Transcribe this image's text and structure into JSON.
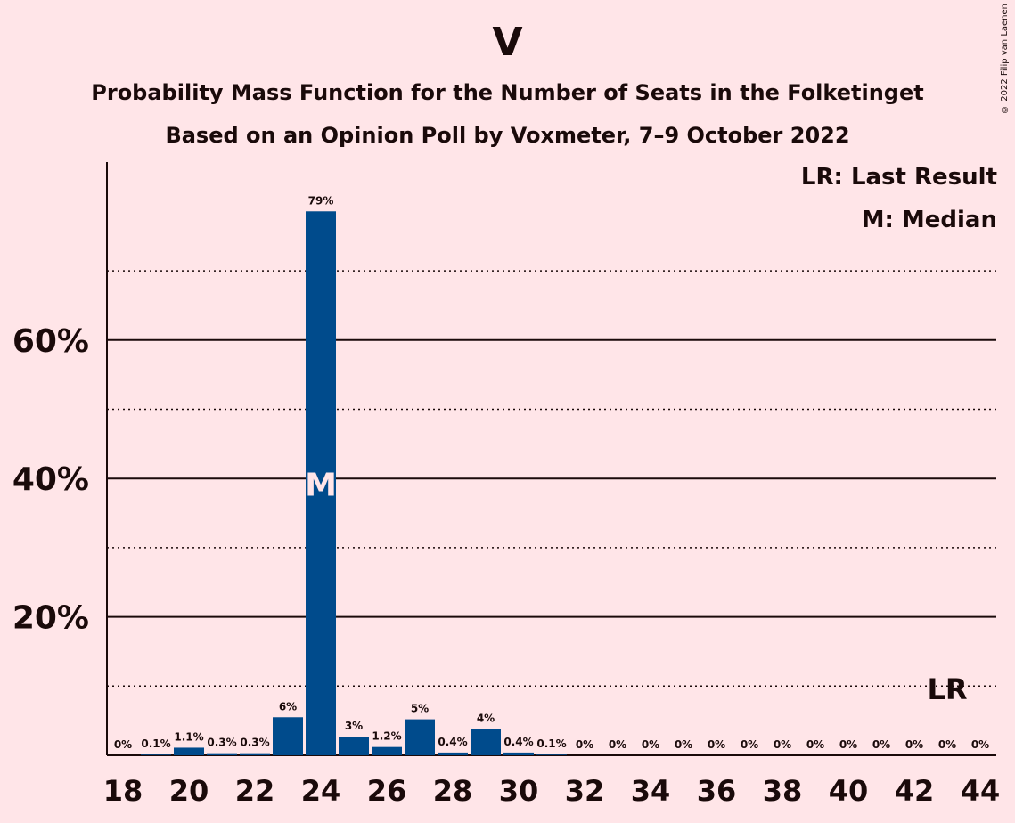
{
  "chart_data": {
    "type": "bar",
    "title": "V",
    "subtitle_lines": [
      "Probability Mass Function for the Number of Seats in the Folketinget",
      "Based on an Opinion Poll by Voxmeter, 7–9 October 2022"
    ],
    "copyright": "© 2022 Filip van Laenen",
    "legend": [
      "LR: Last Result",
      "M: Median"
    ],
    "legend_position": "top-right",
    "categories": [
      18,
      19,
      20,
      21,
      22,
      23,
      24,
      25,
      26,
      27,
      28,
      29,
      30,
      31,
      32,
      33,
      34,
      35,
      36,
      37,
      38,
      39,
      40,
      41,
      42,
      43,
      44
    ],
    "values": [
      0,
      0.1,
      1.1,
      0.3,
      0.3,
      5.5,
      78.6,
      2.7,
      1.2,
      5.2,
      0.4,
      3.8,
      0.4,
      0.1,
      0,
      0,
      0,
      0,
      0,
      0,
      0,
      0,
      0,
      0,
      0,
      0,
      0
    ],
    "data_labels": [
      "0%",
      "0.1%",
      "1.1%",
      "0.3%",
      "0.3%",
      "6%",
      "79%",
      "3%",
      "1.2%",
      "5%",
      "0.4%",
      "4%",
      "0.4%",
      "0.1%",
      "0%",
      "0%",
      "0%",
      "0%",
      "0%",
      "0%",
      "0%",
      "0%",
      "0%",
      "0%",
      "0%",
      "0%",
      "0%"
    ],
    "x_tick_labels": [
      "18",
      "20",
      "22",
      "24",
      "26",
      "28",
      "30",
      "32",
      "34",
      "36",
      "38",
      "40",
      "42",
      "44"
    ],
    "y_tick_labels": [
      "20%",
      "40%",
      "60%"
    ],
    "y_ticks": [
      20,
      40,
      60
    ],
    "ylim": [
      0,
      85
    ],
    "median_seat": 24,
    "median_label": "M",
    "last_result_seat": 43,
    "last_result_label": "LR",
    "grid": true,
    "bar_color": "#004b8c"
  }
}
